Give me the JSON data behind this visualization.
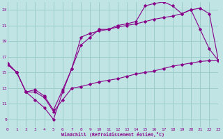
{
  "xlabel": "Windchill (Refroidissement éolien,°C)",
  "background_color": "#c0e4e4",
  "grid_color": "#96c8c8",
  "line_color": "#880088",
  "x_min": 0,
  "x_max": 23,
  "y_min": 8,
  "y_max": 24,
  "yticks": [
    9,
    11,
    13,
    15,
    17,
    19,
    21,
    23
  ],
  "xticks": [
    0,
    1,
    2,
    3,
    4,
    5,
    6,
    7,
    8,
    9,
    10,
    11,
    12,
    13,
    14,
    15,
    16,
    17,
    18,
    19,
    20,
    21,
    22,
    23
  ],
  "line1_x": [
    0,
    1,
    2,
    3,
    4,
    5,
    6,
    7,
    8,
    9,
    10,
    11,
    12,
    13,
    14,
    15,
    16,
    17,
    18,
    19,
    20,
    21,
    22,
    23
  ],
  "line1_y": [
    16.2,
    15.0,
    12.5,
    11.5,
    10.5,
    9.0,
    12.5,
    15.5,
    18.5,
    19.5,
    20.5,
    20.5,
    21.0,
    21.2,
    21.5,
    23.5,
    23.8,
    24.0,
    23.5,
    22.5,
    23.0,
    20.5,
    18.0,
    16.5
  ],
  "line2_x": [
    0,
    1,
    2,
    3,
    4,
    5,
    6,
    7,
    8,
    9,
    10,
    11,
    12,
    13,
    14,
    15,
    16,
    17,
    18,
    19,
    20,
    21,
    22,
    23
  ],
  "line2_y": [
    16.0,
    15.0,
    12.5,
    12.8,
    12.0,
    10.2,
    12.8,
    15.5,
    19.5,
    20.0,
    20.3,
    20.5,
    20.8,
    21.0,
    21.2,
    21.5,
    21.8,
    22.0,
    22.2,
    22.5,
    23.0,
    23.2,
    22.5,
    16.5
  ],
  "line3_x": [
    0,
    1,
    2,
    3,
    4,
    5,
    6,
    7,
    8,
    9,
    10,
    11,
    12,
    13,
    14,
    15,
    16,
    17,
    18,
    19,
    20,
    21,
    22,
    23
  ],
  "line3_y": [
    16.0,
    15.0,
    12.5,
    12.5,
    11.8,
    10.0,
    11.5,
    13.0,
    13.2,
    13.5,
    13.8,
    14.0,
    14.2,
    14.5,
    14.8,
    15.0,
    15.2,
    15.5,
    15.8,
    16.0,
    16.2,
    16.4,
    16.5,
    16.5
  ]
}
